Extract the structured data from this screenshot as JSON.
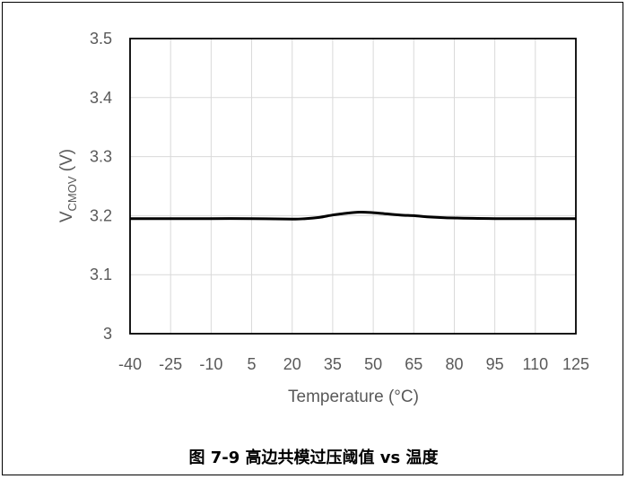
{
  "chart_data": {
    "type": "line",
    "title": "",
    "xlabel": "Temperature (°C)",
    "ylabel_main": "V",
    "ylabel_sub": "CMOV",
    "ylabel_unit": " (V)",
    "x_ticks": [
      "-40",
      "-25",
      "-10",
      "5",
      "20",
      "35",
      "50",
      "65",
      "80",
      "95",
      "110",
      "125"
    ],
    "y_ticks": [
      "3",
      "3.1",
      "3.2",
      "3.3",
      "3.4",
      "3.5"
    ],
    "xlim": [
      -40,
      125
    ],
    "ylim": [
      3.0,
      3.5
    ],
    "grid": true,
    "series": [
      {
        "color": "#000000",
        "x": [
          -40,
          -25,
          -10,
          5,
          20,
          25,
          30,
          35,
          40,
          45,
          50,
          55,
          60,
          65,
          70,
          80,
          95,
          110,
          125
        ],
        "y": [
          3.195,
          3.195,
          3.195,
          3.195,
          3.194,
          3.195,
          3.197,
          3.201,
          3.204,
          3.206,
          3.205,
          3.203,
          3.201,
          3.2,
          3.198,
          3.196,
          3.195,
          3.195,
          3.195
        ]
      }
    ]
  },
  "caption": "图 7-9 高边共模过压阈值 vs 温度"
}
